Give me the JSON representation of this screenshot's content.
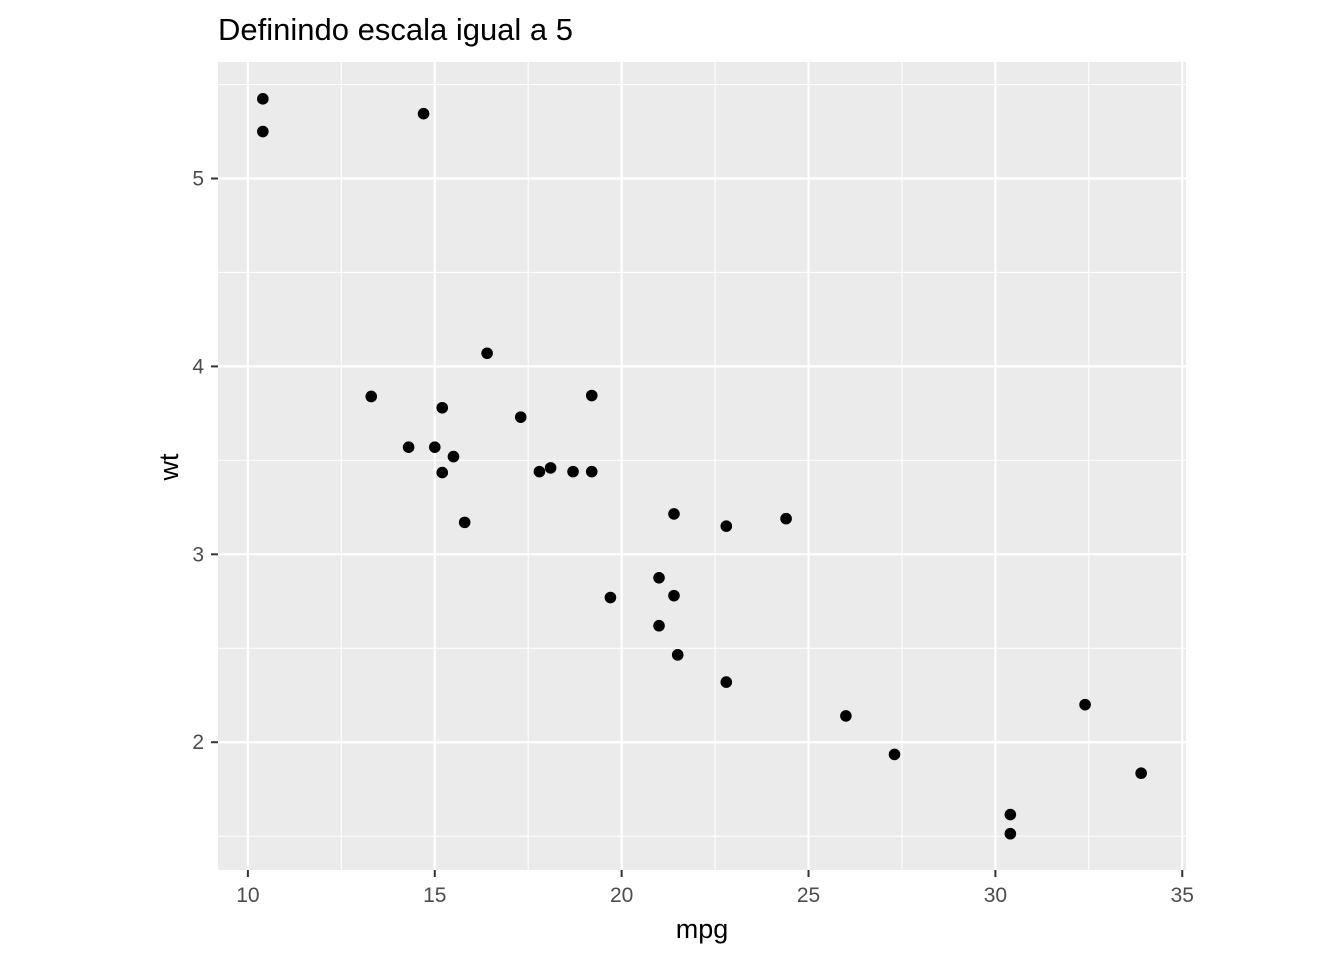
{
  "chart_data": {
    "type": "scatter",
    "title": "Definindo escala igual a 5",
    "xlabel": "mpg",
    "ylabel": "wt",
    "xlim": [
      9.2,
      35.1
    ],
    "ylim": [
      1.32,
      5.62
    ],
    "x_ticks": [
      10,
      15,
      20,
      25,
      30,
      35
    ],
    "y_ticks": [
      2,
      3,
      4,
      5
    ],
    "x_minor": [
      12.5,
      17.5,
      22.5,
      27.5,
      32.5
    ],
    "y_minor": [
      1.5,
      2.5,
      3.5,
      4.5,
      5.5
    ],
    "grid": true,
    "panel_color": "#ebebeb",
    "grid_color": "#ffffff",
    "point_color": "#000000",
    "points": [
      {
        "x": 21.0,
        "y": 2.62
      },
      {
        "x": 21.0,
        "y": 2.875
      },
      {
        "x": 22.8,
        "y": 2.32
      },
      {
        "x": 21.4,
        "y": 3.215
      },
      {
        "x": 18.7,
        "y": 3.44
      },
      {
        "x": 18.1,
        "y": 3.46
      },
      {
        "x": 14.3,
        "y": 3.57
      },
      {
        "x": 24.4,
        "y": 3.19
      },
      {
        "x": 22.8,
        "y": 3.15
      },
      {
        "x": 19.2,
        "y": 3.44
      },
      {
        "x": 17.8,
        "y": 3.44
      },
      {
        "x": 16.4,
        "y": 4.07
      },
      {
        "x": 17.3,
        "y": 3.73
      },
      {
        "x": 15.2,
        "y": 3.78
      },
      {
        "x": 10.4,
        "y": 5.25
      },
      {
        "x": 10.4,
        "y": 5.424
      },
      {
        "x": 14.7,
        "y": 5.345
      },
      {
        "x": 32.4,
        "y": 2.2
      },
      {
        "x": 30.4,
        "y": 1.615
      },
      {
        "x": 33.9,
        "y": 1.835
      },
      {
        "x": 21.5,
        "y": 2.465
      },
      {
        "x": 15.5,
        "y": 3.52
      },
      {
        "x": 15.2,
        "y": 3.435
      },
      {
        "x": 13.3,
        "y": 3.84
      },
      {
        "x": 19.2,
        "y": 3.845
      },
      {
        "x": 27.3,
        "y": 1.935
      },
      {
        "x": 26.0,
        "y": 2.14
      },
      {
        "x": 30.4,
        "y": 1.513
      },
      {
        "x": 15.8,
        "y": 3.17
      },
      {
        "x": 19.7,
        "y": 2.77
      },
      {
        "x": 15.0,
        "y": 3.57
      },
      {
        "x": 21.4,
        "y": 2.78
      }
    ]
  }
}
